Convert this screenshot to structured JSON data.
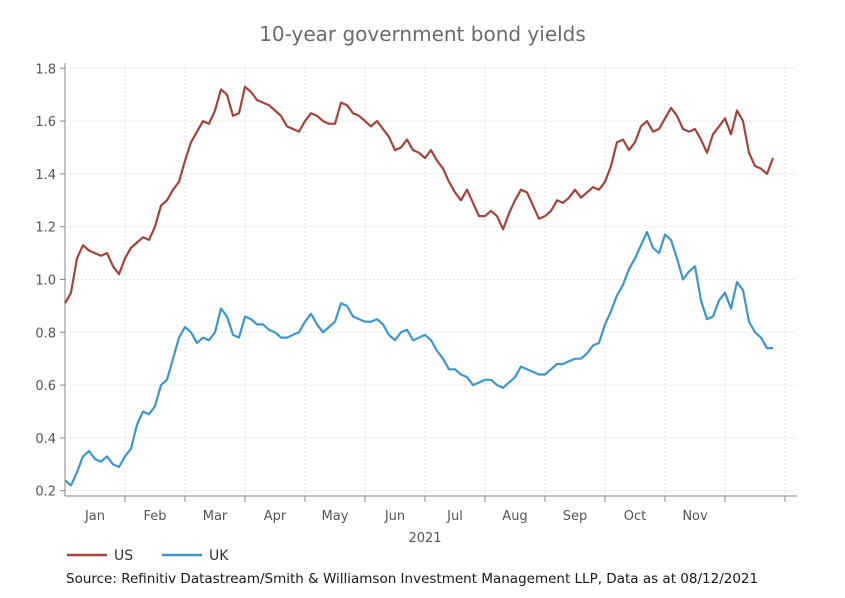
{
  "chart_data": {
    "type": "line",
    "title": "10-year government bond yields",
    "xlabel": "2021",
    "ylabel": "",
    "ylim": [
      0.18,
      1.82
    ],
    "xlim": [
      0,
      12.2
    ],
    "grid": true,
    "legend_position": "bottom-left",
    "x_tick_labels": [
      "Jan",
      "Feb",
      "Mar",
      "Apr",
      "May",
      "Jun",
      "Jul",
      "Aug",
      "Sep",
      "Oct",
      "Nov"
    ],
    "y_tick_labels": [
      "0.2",
      "0.4",
      "0.6",
      "0.8",
      "1.0",
      "1.2",
      "1.4",
      "1.6",
      "1.8"
    ],
    "y_ticks": [
      0.2,
      0.4,
      0.6,
      0.8,
      1.0,
      1.2,
      1.4,
      1.6,
      1.8
    ],
    "x_unit": "months from start of January 2021",
    "series": [
      {
        "name": "US",
        "color": "#a5433b",
        "x": [
          0,
          0.1,
          0.2,
          0.3,
          0.4,
          0.5,
          0.6,
          0.7,
          0.8,
          0.9,
          1.0,
          1.1,
          1.2,
          1.3,
          1.4,
          1.5,
          1.6,
          1.7,
          1.8,
          1.9,
          2.0,
          2.1,
          2.2,
          2.3,
          2.4,
          2.5,
          2.6,
          2.7,
          2.8,
          2.9,
          3.0,
          3.1,
          3.2,
          3.3,
          3.4,
          3.5,
          3.6,
          3.7,
          3.8,
          3.9,
          4.0,
          4.1,
          4.2,
          4.3,
          4.4,
          4.5,
          4.6,
          4.7,
          4.8,
          4.9,
          5.0,
          5.1,
          5.2,
          5.3,
          5.4,
          5.5,
          5.6,
          5.7,
          5.8,
          5.9,
          6.0,
          6.1,
          6.2,
          6.3,
          6.4,
          6.5,
          6.6,
          6.7,
          6.8,
          6.9,
          7.0,
          7.1,
          7.2,
          7.3,
          7.4,
          7.5,
          7.6,
          7.7,
          7.8,
          7.9,
          8.0,
          8.1,
          8.2,
          8.3,
          8.4,
          8.5,
          8.6,
          8.7,
          8.8,
          8.9,
          9.0,
          9.1,
          9.2,
          9.3,
          9.4,
          9.5,
          9.6,
          9.7,
          9.8,
          9.9,
          10.0,
          10.1,
          10.2,
          10.3,
          10.4,
          10.5,
          10.6,
          10.7,
          10.8,
          10.9,
          11.0,
          11.1,
          11.2,
          11.3,
          11.4,
          11.5,
          11.6,
          11.7,
          11.8
        ],
        "values": [
          0.91,
          0.95,
          1.08,
          1.13,
          1.11,
          1.1,
          1.09,
          1.1,
          1.05,
          1.02,
          1.08,
          1.12,
          1.14,
          1.16,
          1.15,
          1.2,
          1.28,
          1.3,
          1.34,
          1.37,
          1.45,
          1.52,
          1.56,
          1.6,
          1.59,
          1.64,
          1.72,
          1.7,
          1.62,
          1.63,
          1.73,
          1.71,
          1.68,
          1.67,
          1.66,
          1.64,
          1.62,
          1.58,
          1.57,
          1.56,
          1.6,
          1.63,
          1.62,
          1.6,
          1.59,
          1.59,
          1.67,
          1.66,
          1.63,
          1.62,
          1.6,
          1.58,
          1.6,
          1.57,
          1.54,
          1.49,
          1.5,
          1.53,
          1.49,
          1.48,
          1.46,
          1.49,
          1.45,
          1.42,
          1.37,
          1.33,
          1.3,
          1.34,
          1.29,
          1.24,
          1.24,
          1.26,
          1.24,
          1.19,
          1.25,
          1.3,
          1.34,
          1.33,
          1.28,
          1.23,
          1.24,
          1.26,
          1.3,
          1.29,
          1.31,
          1.34,
          1.31,
          1.33,
          1.35,
          1.34,
          1.37,
          1.43,
          1.52,
          1.53,
          1.49,
          1.52,
          1.58,
          1.6,
          1.56,
          1.57,
          1.61,
          1.65,
          1.62,
          1.57,
          1.56,
          1.57,
          1.53,
          1.48,
          1.55,
          1.58,
          1.61,
          1.55,
          1.64,
          1.6,
          1.48,
          1.43,
          1.42,
          1.4,
          1.46
        ]
      },
      {
        "name": "UK",
        "color": "#3d96cf",
        "x": [
          0,
          0.1,
          0.2,
          0.3,
          0.4,
          0.5,
          0.6,
          0.7,
          0.8,
          0.9,
          1.0,
          1.1,
          1.2,
          1.3,
          1.4,
          1.5,
          1.6,
          1.7,
          1.8,
          1.9,
          2.0,
          2.1,
          2.2,
          2.3,
          2.4,
          2.5,
          2.6,
          2.7,
          2.8,
          2.9,
          3.0,
          3.1,
          3.2,
          3.3,
          3.4,
          3.5,
          3.6,
          3.7,
          3.8,
          3.9,
          4.0,
          4.1,
          4.2,
          4.3,
          4.4,
          4.5,
          4.6,
          4.7,
          4.8,
          4.9,
          5.0,
          5.1,
          5.2,
          5.3,
          5.4,
          5.5,
          5.6,
          5.7,
          5.8,
          5.9,
          6.0,
          6.1,
          6.2,
          6.3,
          6.4,
          6.5,
          6.6,
          6.7,
          6.8,
          6.9,
          7.0,
          7.1,
          7.2,
          7.3,
          7.4,
          7.5,
          7.6,
          7.7,
          7.8,
          7.9,
          8.0,
          8.1,
          8.2,
          8.3,
          8.4,
          8.5,
          8.6,
          8.7,
          8.8,
          8.9,
          9.0,
          9.1,
          9.2,
          9.3,
          9.4,
          9.5,
          9.6,
          9.7,
          9.8,
          9.9,
          10.0,
          10.1,
          10.2,
          10.3,
          10.4,
          10.5,
          10.6,
          10.7,
          10.8,
          10.9,
          11.0,
          11.1,
          11.2,
          11.3,
          11.4,
          11.5,
          11.6,
          11.7,
          11.8
        ],
        "values": [
          0.24,
          0.22,
          0.27,
          0.33,
          0.35,
          0.32,
          0.31,
          0.33,
          0.3,
          0.29,
          0.33,
          0.36,
          0.45,
          0.5,
          0.49,
          0.52,
          0.6,
          0.62,
          0.7,
          0.78,
          0.82,
          0.8,
          0.76,
          0.78,
          0.77,
          0.8,
          0.89,
          0.86,
          0.79,
          0.78,
          0.86,
          0.85,
          0.83,
          0.83,
          0.81,
          0.8,
          0.78,
          0.78,
          0.79,
          0.8,
          0.84,
          0.87,
          0.83,
          0.8,
          0.82,
          0.84,
          0.91,
          0.9,
          0.86,
          0.85,
          0.84,
          0.84,
          0.85,
          0.83,
          0.79,
          0.77,
          0.8,
          0.81,
          0.77,
          0.78,
          0.79,
          0.77,
          0.73,
          0.7,
          0.66,
          0.66,
          0.64,
          0.63,
          0.6,
          0.61,
          0.62,
          0.62,
          0.6,
          0.59,
          0.61,
          0.63,
          0.67,
          0.66,
          0.65,
          0.64,
          0.64,
          0.66,
          0.68,
          0.68,
          0.69,
          0.7,
          0.7,
          0.72,
          0.75,
          0.76,
          0.83,
          0.88,
          0.94,
          0.98,
          1.04,
          1.08,
          1.13,
          1.18,
          1.12,
          1.1,
          1.17,
          1.15,
          1.08,
          1.0,
          1.03,
          1.05,
          0.92,
          0.85,
          0.86,
          0.92,
          0.95,
          0.89,
          0.99,
          0.96,
          0.84,
          0.8,
          0.78,
          0.74,
          0.74
        ]
      }
    ]
  },
  "source_note": "Source: Refinitiv Datastream/Smith & Williamson Investment Management LLP, Data as at 08/12/2021"
}
